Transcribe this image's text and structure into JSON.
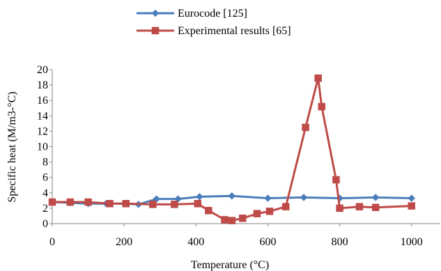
{
  "chart_data": {
    "type": "line",
    "title": "",
    "xlabel": "Temperature (°C)",
    "ylabel": "Specific heat (M/m3-°C)",
    "xlim": [
      0,
      1080
    ],
    "ylim": [
      0,
      20
    ],
    "x_ticks": [
      0,
      200,
      400,
      600,
      800,
      1000
    ],
    "y_ticks": [
      0,
      2,
      4,
      6,
      8,
      10,
      12,
      14,
      16,
      18,
      20
    ],
    "grid": false,
    "legend_position": "top",
    "series": [
      {
        "name": "Eurocode [125]",
        "color": "#4a7ebb",
        "marker": "diamond",
        "x": [
          0,
          50,
          100,
          150,
          200,
          240,
          290,
          350,
          410,
          500,
          600,
          700,
          800,
          900,
          1000
        ],
        "y": [
          2.8,
          2.7,
          2.6,
          2.6,
          2.6,
          2.5,
          3.2,
          3.2,
          3.5,
          3.6,
          3.3,
          3.4,
          3.3,
          3.4,
          3.3
        ]
      },
      {
        "name": "Experimental results [65]",
        "color": "#be4b48",
        "marker": "square",
        "x": [
          0,
          50,
          100,
          160,
          205,
          280,
          340,
          405,
          435,
          480,
          500,
          530,
          570,
          605,
          650,
          705,
          740,
          750,
          790,
          800,
          855,
          900,
          1000
        ],
        "y": [
          2.8,
          2.8,
          2.8,
          2.6,
          2.6,
          2.5,
          2.5,
          2.6,
          1.7,
          0.5,
          0.4,
          0.7,
          1.3,
          1.6,
          2.2,
          12.5,
          18.9,
          15.2,
          5.7,
          2.0,
          2.2,
          2.1,
          2.3
        ]
      }
    ]
  }
}
